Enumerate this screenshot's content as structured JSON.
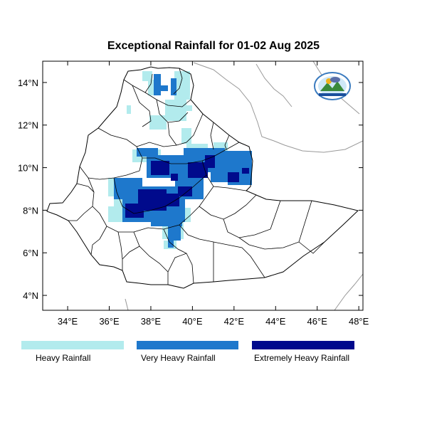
{
  "map": {
    "title": "Exceptional Rainfall for 01-02 Aug 2025",
    "lon_ticks": [
      "34°E",
      "36°E",
      "38°E",
      "40°E",
      "42°E",
      "44°E",
      "46°E",
      "48°E"
    ],
    "lat_ticks": [
      "14°N",
      "12°N",
      "10°N",
      "8°N",
      "6°N",
      "4°N"
    ],
    "lon_range": [
      32.8,
      48.2
    ],
    "lat_range": [
      3.3,
      15.0
    ],
    "colors": {
      "heavy": "#b2ebed",
      "very_heavy": "#1e78cc",
      "extremely_heavy": "#000a8c",
      "border": "#000000",
      "neighbor_border": "#999999"
    }
  },
  "legend": {
    "items": [
      {
        "label": "Heavy Rainfall",
        "color": "#b2ebed"
      },
      {
        "label": "Very Heavy Rainfall",
        "color": "#1e78cc"
      },
      {
        "label": "Extremely Heavy Rainfall",
        "color": "#000a8c"
      }
    ]
  },
  "logo": {
    "name": "meteorology-institute-logo-icon"
  }
}
